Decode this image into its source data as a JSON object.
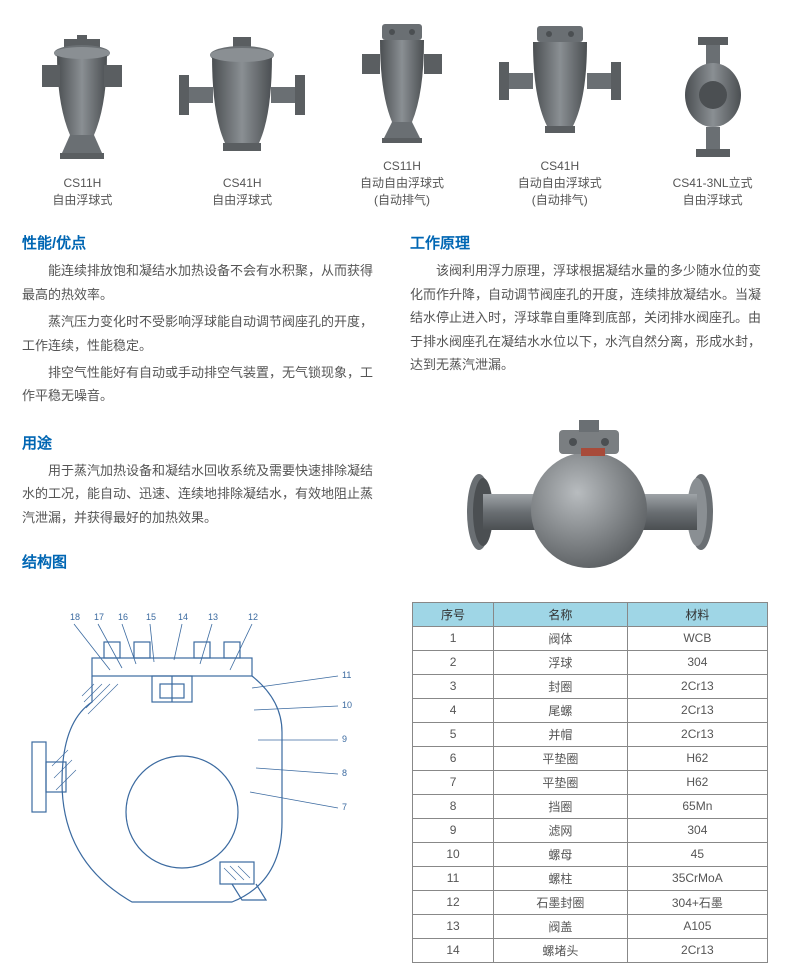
{
  "products": [
    {
      "code": "CS11H",
      "type": "自由浮球式",
      "note": ""
    },
    {
      "code": "CS41H",
      "type": "自由浮球式",
      "note": ""
    },
    {
      "code": "CS11H",
      "type": "自动自由浮球式",
      "note": "(自动排气)"
    },
    {
      "code": "CS41H",
      "type": "自动自由浮球式",
      "note": "(自动排气)"
    },
    {
      "code": "CS41-3NL立式",
      "type": "自由浮球式",
      "note": ""
    }
  ],
  "performance": {
    "title": "性能/优点",
    "p1": "能连续排放饱和凝结水加热设备不会有水积聚，从而获得最高的热效率。",
    "p2": "蒸汽压力变化时不受影响浮球能自动调节阀座孔的开度，工作连续，性能稳定。",
    "p3": "排空气性能好有自动或手动排空气装置，无气锁现象，工作平稳无噪音。"
  },
  "principle": {
    "title": "工作原理",
    "p1": "该阀利用浮力原理，浮球根据凝结水量的多少随水位的变化而作升降，自动调节阀座孔的开度，连续排放凝结水。当凝结水停止进入时，浮球靠自重降到底部，关闭排水阀座孔。由于排水阀座孔在凝结水水位以下，水汽自然分离，形成水封，达到无蒸汽泄漏。"
  },
  "usage": {
    "title": "用途",
    "p1": "用于蒸汽加热设备和凝结水回收系统及需要快速排除凝结水的工况，能自动、迅速、连续地排除凝结水，有效地阻止蒸汽泄漏，并获得最好的加热效果。"
  },
  "structure_title": "结构图",
  "materials_table": {
    "headers": [
      "序号",
      "名称",
      "材料"
    ],
    "rows": [
      [
        "1",
        "阀体",
        "WCB"
      ],
      [
        "2",
        "浮球",
        "304"
      ],
      [
        "3",
        "封圈",
        "2Cr13"
      ],
      [
        "4",
        "尾螺",
        "2Cr13"
      ],
      [
        "5",
        "并帽",
        "2Cr13"
      ],
      [
        "6",
        "平垫圈",
        "H62"
      ],
      [
        "7",
        "平垫圈",
        "H62"
      ],
      [
        "8",
        "挡圈",
        "65Mn"
      ],
      [
        "9",
        "滤网",
        "304"
      ],
      [
        "10",
        "螺母",
        "45"
      ],
      [
        "11",
        "螺柱",
        "35CrMoA"
      ],
      [
        "12",
        "石墨封圈",
        "304+石墨"
      ],
      [
        "13",
        "阀盖",
        "A105"
      ],
      [
        "14",
        "螺堵头",
        "2Cr13"
      ]
    ]
  },
  "diagram_callouts": [
    "18",
    "17",
    "16",
    "15",
    "14",
    "13",
    "12",
    "11",
    "10",
    "9",
    "8",
    "7"
  ],
  "colors": {
    "title": "#0066b3",
    "text": "#555555",
    "table_header_bg": "#9fd6e6",
    "table_border": "#888888",
    "valve_body": "#6a6f73",
    "valve_shadow": "#4b4f52",
    "valve_highlight": "#9ea3a7",
    "diagram_line": "#3b6aa0"
  }
}
